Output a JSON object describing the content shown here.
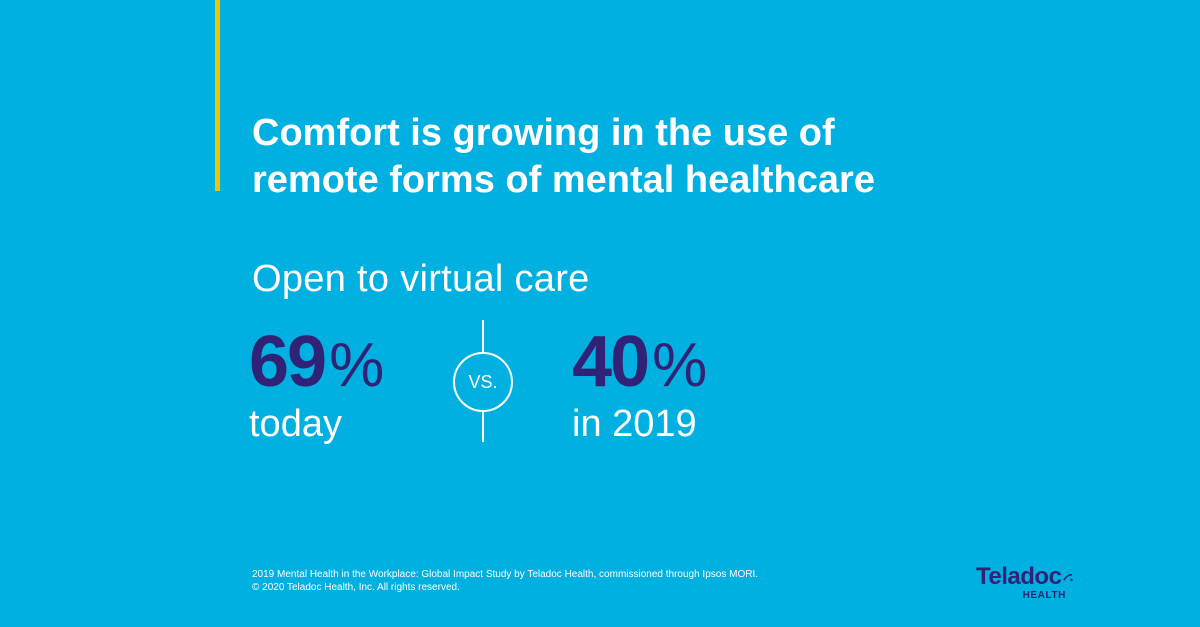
{
  "colors": {
    "background": "#00b0e0",
    "accent_bar": "#f2c300",
    "stat_number": "#2f2277",
    "logo": "#2f2277"
  },
  "headline": {
    "line1": "Comfort is growing in the use of",
    "line2": "remote forms of mental healthcare"
  },
  "subtitle": "Open to virtual care",
  "comparison": {
    "left": {
      "number": "69",
      "unit": "%",
      "label": "today"
    },
    "separator": "VS.",
    "right": {
      "number": "40",
      "unit": "%",
      "label": "in 2019"
    }
  },
  "footnote": {
    "line1": "2019 Mental Health in the Workplace: Global Impact Study by Teladoc Health, commissioned through Ipsos MORI.",
    "line2": "© 2020 Teladoc Health, Inc. All rights reserved."
  },
  "logo": {
    "wordmark": "Teladoc",
    "subword": "HEALTH",
    "mark_icon": "teladoc-dot-icon"
  }
}
